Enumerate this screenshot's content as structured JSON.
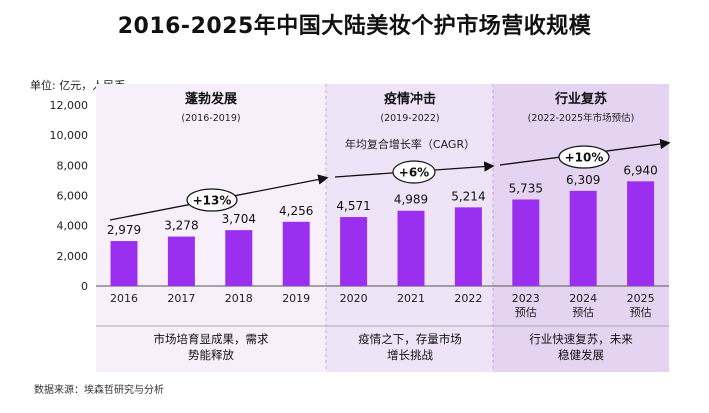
{
  "title": "2016-2025年中国大陆美妆个护市场营收规模",
  "unit_label": "单位: 亿元，人民币",
  "source": "数据来源：埃森哲研究与分析",
  "cagr_label": "年均复合增长率（CAGR）",
  "colors": {
    "bar": "#9b2ff0",
    "band_light": "#f7f0fb",
    "band_mid": "#efe3f7",
    "band_dark": "#e5d3f2",
    "divider": "#c9a8e0"
  },
  "phases": [
    {
      "title": "蓬勃发展",
      "range": "(2016-2019)",
      "cagr": "+13%",
      "note_lines": [
        "市场培育显成果，需求",
        "势能释放"
      ]
    },
    {
      "title": "疫情冲击",
      "range": "(2019-2022)",
      "cagr": "+6%",
      "note_lines": [
        "疫情之下，存量市场",
        "增长挑战"
      ]
    },
    {
      "title": "行业复苏",
      "range": "(2022-2025年市场预估)",
      "cagr": "+10%",
      "note_lines": [
        "行业快速复苏，未来",
        "稳健发展"
      ]
    }
  ],
  "chart_data": {
    "type": "bar",
    "categories": [
      "2016",
      "2017",
      "2018",
      "2019",
      "2020",
      "2021",
      "2022",
      "2023",
      "2024",
      "2025"
    ],
    "category_sublabels": [
      "",
      "",
      "",
      "",
      "",
      "",
      "",
      "预估",
      "预估",
      "预估"
    ],
    "values": [
      2979,
      3278,
      3704,
      4256,
      4571,
      4989,
      5214,
      5735,
      6309,
      6940
    ],
    "value_labels": [
      "2,979",
      "3,278",
      "3,704",
      "4,256",
      "4,571",
      "4,989",
      "5,214",
      "5,735",
      "6,309",
      "6,940"
    ],
    "y_ticks": [
      0,
      2000,
      4000,
      6000,
      8000,
      10000,
      12000
    ],
    "y_tick_labels": [
      "0",
      "2,000",
      "4,000",
      "6,000",
      "8,000",
      "10,000",
      "12,000"
    ],
    "ylim": [
      0,
      12000
    ],
    "ylabel": "单位: 亿元，人民币",
    "xlabel": "",
    "grid": false,
    "legend": "none"
  }
}
